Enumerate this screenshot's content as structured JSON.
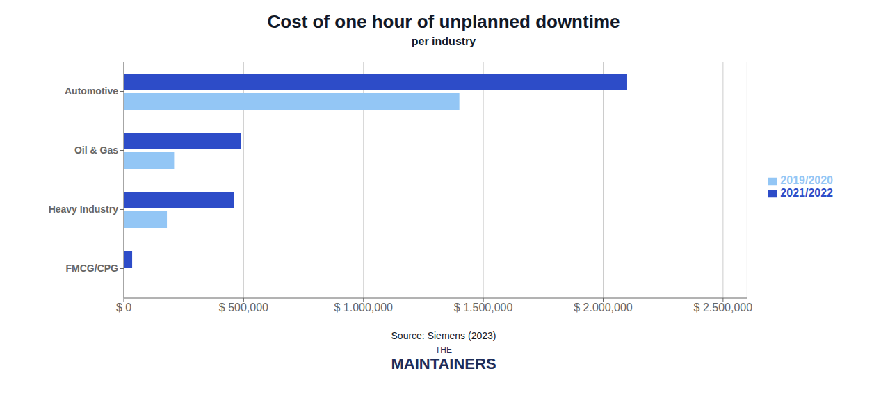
{
  "chart_data": {
    "type": "bar",
    "orientation": "horizontal",
    "title": "Cost of one hour of unplanned downtime",
    "subtitle": "per industry",
    "categories": [
      "Automotive",
      "Oil & Gas",
      "Heavy Industry",
      "FMCG/CPG"
    ],
    "series": [
      {
        "name": "2021/2022",
        "color": "#2d4cc8",
        "values": [
          2100000,
          490000,
          460000,
          35000
        ]
      },
      {
        "name": "2019/2020",
        "color": "#93c6f5",
        "values": [
          1400000,
          210000,
          180000,
          0
        ]
      }
    ],
    "xlim": [
      0,
      2600000
    ],
    "xticks": [
      {
        "value": 0,
        "label": "$ 0"
      },
      {
        "value": 500000,
        "label": "$ 500,000"
      },
      {
        "value": 1000000,
        "label": "$ 1.000,000"
      },
      {
        "value": 1500000,
        "label": "$ 1.500,000"
      },
      {
        "value": 2000000,
        "label": "$ 2.000,000"
      },
      {
        "value": 2500000,
        "label": "$ 2.500,000"
      }
    ],
    "grid": true,
    "legend": "right",
    "annotations": [
      "Source: Siemens (2023)",
      "THE",
      "MAINTAINERS"
    ]
  }
}
